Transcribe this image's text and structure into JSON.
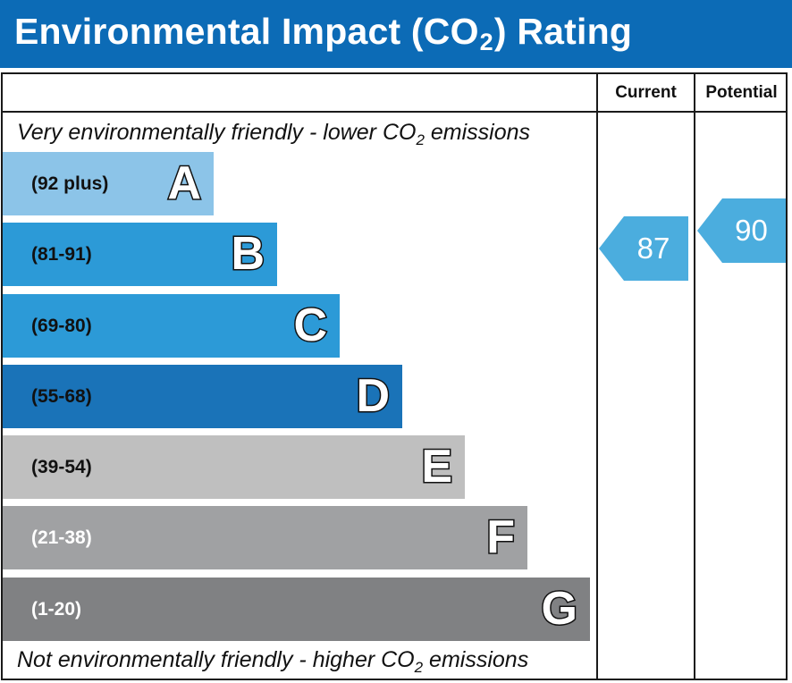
{
  "header": {
    "title_part1": "Environmental Impact (CO",
    "title_sub": "2",
    "title_part2": ") Rating"
  },
  "columns": {
    "current": "Current",
    "potential": "Potential"
  },
  "notes": {
    "top_part1": "Very environmentally friendly - lower CO",
    "top_sub": "2",
    "top_part2": " emissions",
    "bottom_part1": "Not environmentally friendly - higher CO",
    "bottom_sub": "2",
    "bottom_part2": " emissions"
  },
  "colors": {
    "header": "#0c6bb6",
    "A": "#8cc4e8",
    "B": "#2c9ad7",
    "C": "#2c9ad7",
    "D": "#1a73b8",
    "E": "#bfbfbf",
    "F": "#a0a1a3",
    "G": "#808183",
    "indicator": "#4badde"
  },
  "chart_data": {
    "type": "rating-scale",
    "title": "Environmental Impact (CO2) Rating",
    "bands": [
      {
        "letter": "A",
        "range": "(92 plus)",
        "min": 92,
        "max": null
      },
      {
        "letter": "B",
        "range": "(81-91)",
        "min": 81,
        "max": 91
      },
      {
        "letter": "C",
        "range": "(69-80)",
        "min": 69,
        "max": 80
      },
      {
        "letter": "D",
        "range": "(55-68)",
        "min": 55,
        "max": 68
      },
      {
        "letter": "E",
        "range": "(39-54)",
        "min": 39,
        "max": 54
      },
      {
        "letter": "F",
        "range": "(21-38)",
        "min": 21,
        "max": 38
      },
      {
        "letter": "G",
        "range": "(1-20)",
        "min": 1,
        "max": 20
      }
    ],
    "current": {
      "value": 87,
      "band": "B"
    },
    "potential": {
      "value": 90,
      "band": "B"
    }
  }
}
